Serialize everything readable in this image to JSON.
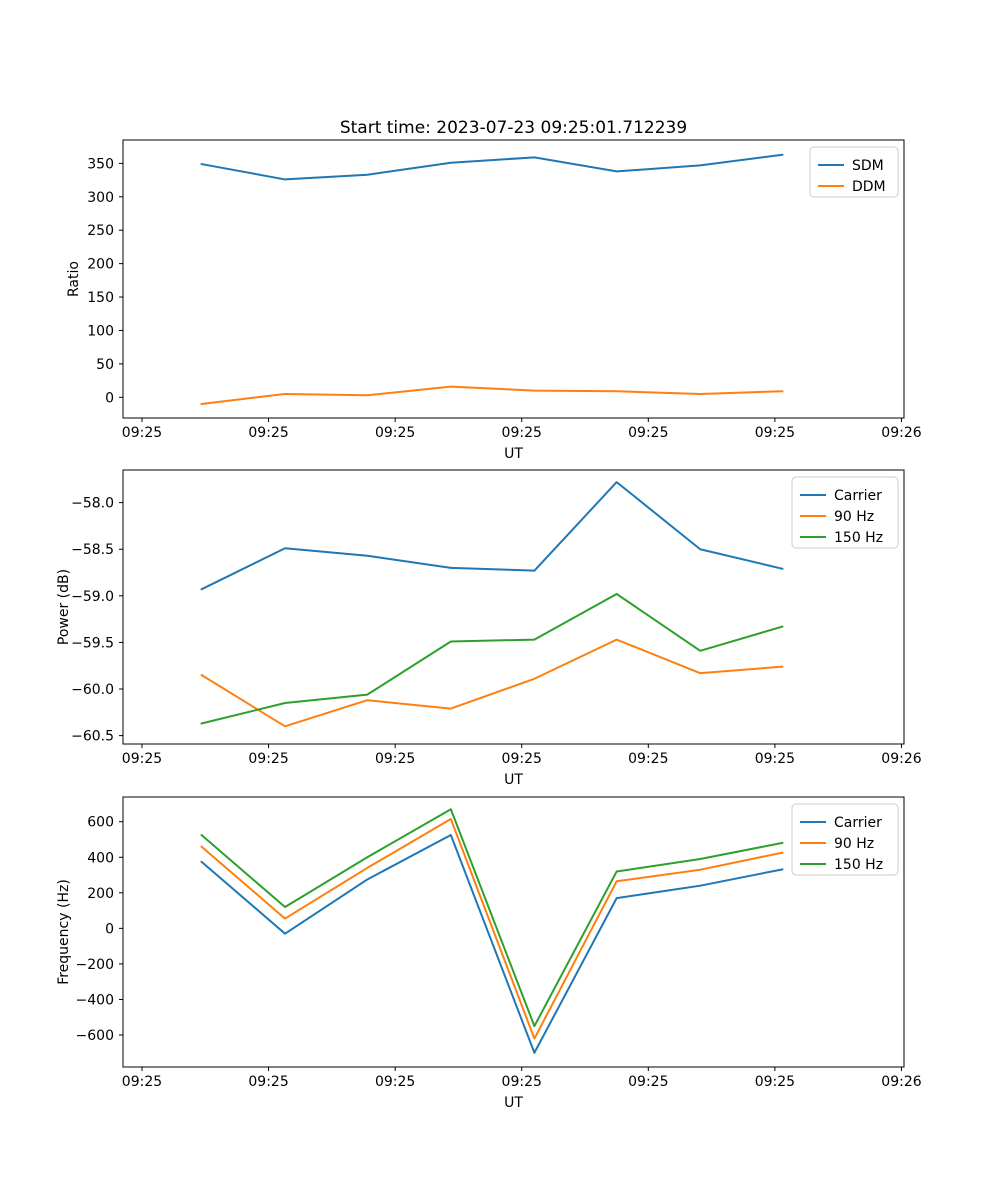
{
  "figure": {
    "background": "#ffffff",
    "title": "Start time: 2023-07-23 09:25:01.712239"
  },
  "colors": {
    "blue": "#1f77b4",
    "orange": "#ff7f0e",
    "green": "#2ca02c",
    "spine": "#000000",
    "legend_border": "#cccccc"
  },
  "chart_data": [
    {
      "type": "line",
      "title": "Start time: 2023-07-23 09:25:01.712239",
      "xlabel": "UT",
      "ylabel": "Ratio",
      "grid": false,
      "legend_position": "upper right",
      "xlim_seconds": [
        -1.5,
        60.2
      ],
      "x_ticks_seconds": [
        0,
        10,
        20,
        30,
        40,
        50,
        60
      ],
      "x_tick_labels": [
        "09:25",
        "09:25",
        "09:25",
        "09:25",
        "09:25",
        "09:25",
        "09:26"
      ],
      "x_seconds": [
        4.7,
        11.3,
        17.8,
        24.4,
        31.0,
        37.5,
        44.1,
        50.6
      ],
      "ylim": [
        -31,
        385
      ],
      "y_ticks": [
        0,
        50,
        100,
        150,
        200,
        250,
        300,
        350
      ],
      "y_tick_labels": [
        "0",
        "50",
        "100",
        "150",
        "200",
        "250",
        "300",
        "350"
      ],
      "series": [
        {
          "name": "SDM",
          "color": "#1f77b4",
          "values": [
            349,
            326,
            333,
            351,
            359,
            338,
            347,
            363
          ]
        },
        {
          "name": "DDM",
          "color": "#ff7f0e",
          "values": [
            -10,
            5,
            3,
            16,
            10,
            9,
            5,
            9
          ]
        }
      ]
    },
    {
      "type": "line",
      "title": "",
      "xlabel": "UT",
      "ylabel": "Power (dB)",
      "grid": false,
      "legend_position": "upper right",
      "xlim_seconds": [
        -1.5,
        60.2
      ],
      "x_ticks_seconds": [
        0,
        10,
        20,
        30,
        40,
        50,
        60
      ],
      "x_tick_labels": [
        "09:25",
        "09:25",
        "09:25",
        "09:25",
        "09:25",
        "09:25",
        "09:26"
      ],
      "x_seconds": [
        4.7,
        11.3,
        17.8,
        24.4,
        31.0,
        37.5,
        44.1,
        50.6
      ],
      "ylim": [
        -60.59,
        -57.65
      ],
      "y_ticks": [
        -58.0,
        -58.5,
        -59.0,
        -59.5,
        -60.0,
        -60.5
      ],
      "y_tick_labels": [
        "−58.0",
        "−58.5",
        "−59.0",
        "−59.5",
        "−60.0",
        "−60.5"
      ],
      "series": [
        {
          "name": "Carrier",
          "color": "#1f77b4",
          "values": [
            -58.93,
            -58.49,
            -58.57,
            -58.7,
            -58.73,
            -57.78,
            -58.5,
            -58.71
          ]
        },
        {
          "name": "90 Hz",
          "color": "#ff7f0e",
          "values": [
            -59.85,
            -60.4,
            -60.12,
            -60.21,
            -59.89,
            -59.47,
            -59.83,
            -59.76
          ]
        },
        {
          "name": "150 Hz",
          "color": "#2ca02c",
          "values": [
            -60.37,
            -60.15,
            -60.06,
            -59.49,
            -59.47,
            -58.98,
            -59.59,
            -59.33
          ]
        }
      ]
    },
    {
      "type": "line",
      "title": "",
      "xlabel": "UT",
      "ylabel": "Frequency (Hz)",
      "grid": false,
      "legend_position": "upper right",
      "xlim_seconds": [
        -1.5,
        60.2
      ],
      "x_ticks_seconds": [
        0,
        10,
        20,
        30,
        40,
        50,
        60
      ],
      "x_tick_labels": [
        "09:25",
        "09:25",
        "09:25",
        "09:25",
        "09:25",
        "09:25",
        "09:26"
      ],
      "x_seconds": [
        4.7,
        11.3,
        17.8,
        24.4,
        31.0,
        37.5,
        44.1,
        50.6
      ],
      "ylim": [
        -780,
        739
      ],
      "y_ticks": [
        600,
        400,
        200,
        0,
        -200,
        -400,
        -600
      ],
      "y_tick_labels": [
        "600",
        "400",
        "200",
        "0",
        "−200",
        "−400",
        "−600"
      ],
      "series": [
        {
          "name": "Carrier",
          "color": "#1f77b4",
          "values": [
            375,
            -30,
            275,
            525,
            -700,
            170,
            240,
            332
          ]
        },
        {
          "name": "90 Hz",
          "color": "#ff7f0e",
          "values": [
            460,
            55,
            340,
            615,
            -620,
            265,
            330,
            426
          ]
        },
        {
          "name": "150 Hz",
          "color": "#2ca02c",
          "values": [
            525,
            120,
            400,
            670,
            -550,
            320,
            390,
            481
          ]
        }
      ]
    }
  ]
}
